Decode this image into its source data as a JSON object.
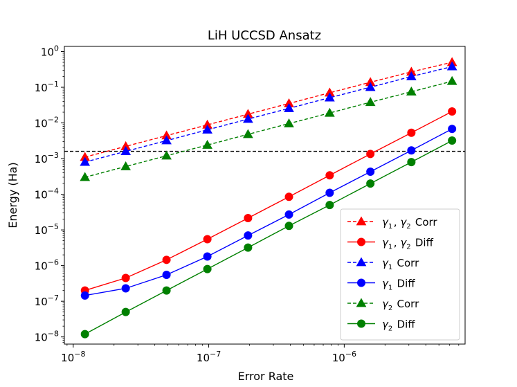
{
  "chart_data": {
    "type": "line",
    "title": "LiH UCCSD Ansatz",
    "xlabel": "Error Rate",
    "ylabel": "Energy (Ha)",
    "xscale": "log",
    "yscale": "log",
    "xlim": [
      8.6e-09,
      7.8e-06
    ],
    "ylim": [
      6.3e-09,
      1.4
    ],
    "x_ticks": [
      {
        "value": 1e-08,
        "base": "10",
        "exp": "−8"
      },
      {
        "value": 1e-07,
        "base": "10",
        "exp": "−7"
      },
      {
        "value": 1e-06,
        "base": "10",
        "exp": "−6"
      }
    ],
    "y_ticks": [
      {
        "value": 1e-08,
        "base": "10",
        "exp": "−8"
      },
      {
        "value": 1e-07,
        "base": "10",
        "exp": "−7"
      },
      {
        "value": 1e-06,
        "base": "10",
        "exp": "−6"
      },
      {
        "value": 1e-05,
        "base": "10",
        "exp": "−5"
      },
      {
        "value": 0.0001,
        "base": "10",
        "exp": "−4"
      },
      {
        "value": 0.001,
        "base": "10",
        "exp": "−3"
      },
      {
        "value": 0.01,
        "base": "10",
        "exp": "−2"
      },
      {
        "value": 0.1,
        "base": "10",
        "exp": "−1"
      },
      {
        "value": 1,
        "base": "10",
        "exp": "0"
      }
    ],
    "x": [
      1.22e-08,
      2.44e-08,
      4.88e-08,
      9.77e-08,
      1.95e-07,
      3.91e-07,
      7.81e-07,
      1.56e-06,
      3.13e-06,
      6.25e-06
    ],
    "threshold": {
      "value": 0.0016,
      "style": "dashed",
      "color": "#000000"
    },
    "legend_position": "lower right",
    "series": [
      {
        "name": "γ1, γ2 Corr",
        "label_parts": [
          [
            "γ",
            "1"
          ],
          ", ",
          [
            "γ",
            "2"
          ],
          " Corr"
        ],
        "color": "#ff0000",
        "marker": "triangle",
        "linestyle": "dashed",
        "values": [
          0.0011,
          0.0022,
          0.0044,
          0.0088,
          0.0176,
          0.035,
          0.07,
          0.138,
          0.27,
          0.5
        ]
      },
      {
        "name": "γ1, γ2 Diff",
        "label_parts": [
          [
            "γ",
            "1"
          ],
          ", ",
          [
            "γ",
            "2"
          ],
          " Diff"
        ],
        "color": "#ff0000",
        "marker": "circle",
        "linestyle": "solid",
        "values": [
          2e-07,
          4.5e-07,
          1.45e-06,
          5.5e-06,
          2.15e-05,
          8.5e-05,
          0.00034,
          0.00135,
          0.0053,
          0.021
        ]
      },
      {
        "name": "γ1 Corr",
        "label_parts": [
          [
            "γ",
            "1"
          ],
          " Corr"
        ],
        "color": "#0000ff",
        "marker": "triangle",
        "linestyle": "dashed",
        "values": [
          0.0008,
          0.0016,
          0.0032,
          0.0064,
          0.0128,
          0.0256,
          0.051,
          0.1,
          0.2,
          0.38
        ]
      },
      {
        "name": "γ1 Diff",
        "label_parts": [
          [
            "γ",
            "1"
          ],
          " Diff"
        ],
        "color": "#0000ff",
        "marker": "circle",
        "linestyle": "solid",
        "values": [
          1.45e-07,
          2.3e-07,
          5.5e-07,
          1.8e-06,
          7e-06,
          2.7e-05,
          0.00011,
          0.00043,
          0.0017,
          0.0068
        ]
      },
      {
        "name": "γ2 Corr",
        "label_parts": [
          [
            "γ",
            "2"
          ],
          " Corr"
        ],
        "color": "#008000",
        "marker": "triangle",
        "linestyle": "dashed",
        "values": [
          0.0003,
          0.0006,
          0.0012,
          0.0024,
          0.0048,
          0.0096,
          0.019,
          0.038,
          0.075,
          0.148
        ]
      },
      {
        "name": "γ2 Diff",
        "label_parts": [
          [
            "γ",
            "2"
          ],
          " Diff"
        ],
        "color": "#008000",
        "marker": "circle",
        "linestyle": "solid",
        "values": [
          1.2e-08,
          5e-08,
          2e-07,
          8e-07,
          3.2e-06,
          1.3e-05,
          5e-05,
          0.0002,
          0.0008,
          0.0032
        ]
      }
    ]
  }
}
